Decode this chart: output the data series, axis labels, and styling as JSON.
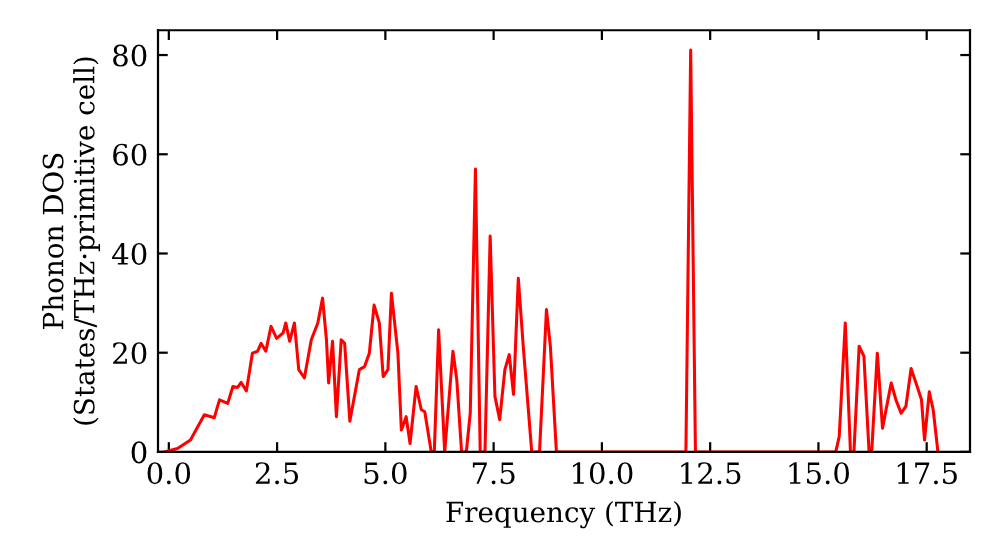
{
  "chart_data": {
    "type": "line",
    "xlabel": "Frequency (THz)",
    "ylabel": "Phonon DOS\n(States/THz·primitive cell)",
    "xlim": [
      -0.25,
      18.5
    ],
    "ylim": [
      0,
      85
    ],
    "xticks": [
      {
        "value": 0,
        "label": "0.0"
      },
      {
        "value": 2.5,
        "label": "2.5"
      },
      {
        "value": 5,
        "label": "5.0"
      },
      {
        "value": 7.5,
        "label": "7.5"
      },
      {
        "value": 10,
        "label": "10.0"
      },
      {
        "value": 12.5,
        "label": "12.5"
      },
      {
        "value": 15,
        "label": "15.0"
      },
      {
        "value": 17.5,
        "label": "17.5"
      }
    ],
    "yticks": [
      0,
      20,
      40,
      60,
      80
    ],
    "grid": false,
    "legend": false,
    "marker": "none",
    "line_style": "solid",
    "series": [
      {
        "color": "#ff0000",
        "x": [
          -0.1,
          0.2,
          0.5,
          0.82,
          1.05,
          1.17,
          1.36,
          1.48,
          1.59,
          1.67,
          1.79,
          1.93,
          2.05,
          2.13,
          2.24,
          2.36,
          2.49,
          2.64,
          2.7,
          2.79,
          2.9,
          3.0,
          3.13,
          3.29,
          3.44,
          3.55,
          3.64,
          3.69,
          3.78,
          3.87,
          3.98,
          4.06,
          4.18,
          4.4,
          4.52,
          4.63,
          4.74,
          4.86,
          4.95,
          5.06,
          5.14,
          5.29,
          5.37,
          5.48,
          5.57,
          5.71,
          5.83,
          5.91,
          6.06,
          6.13,
          6.23,
          6.37,
          6.56,
          6.65,
          6.76,
          6.87,
          6.96,
          7.08,
          7.19,
          7.3,
          7.42,
          7.53,
          7.64,
          7.76,
          7.86,
          7.96,
          8.07,
          8.19,
          8.38,
          8.56,
          8.72,
          8.81,
          8.95,
          11.94,
          12.05,
          12.16,
          15.4,
          15.48,
          15.62,
          15.74,
          15.82,
          15.94,
          16.05,
          16.17,
          16.23,
          16.36,
          16.48,
          16.68,
          16.79,
          16.91,
          17.02,
          17.14,
          17.28,
          17.38,
          17.45,
          17.56,
          17.65,
          17.76
        ],
        "values": [
          0,
          0.7,
          2.4,
          7.5,
          6.9,
          10.5,
          9.8,
          13.2,
          13,
          14,
          12.3,
          19.9,
          20.3,
          21.9,
          20.3,
          25.3,
          22.9,
          24,
          26,
          22.3,
          26,
          16.6,
          14.9,
          22.6,
          26,
          31,
          22.6,
          13.9,
          22.3,
          7.1,
          22.6,
          21.9,
          6.2,
          16.6,
          17.2,
          19.9,
          29.6,
          26,
          15.2,
          16.6,
          32,
          19.9,
          4.4,
          7.1,
          1.7,
          13.2,
          8.5,
          8.1,
          0,
          0,
          24.6,
          0,
          20.3,
          14.5,
          0,
          0,
          7.8,
          57,
          0,
          0,
          43.5,
          11.2,
          6.5,
          16.6,
          19.6,
          11.6,
          35,
          20.6,
          0,
          0,
          28.7,
          21.3,
          0,
          0,
          81,
          0,
          0,
          3.1,
          26,
          0,
          0,
          21.3,
          19.3,
          0,
          0,
          19.9,
          4.8,
          13.9,
          10.5,
          7.8,
          9.2,
          16.8,
          13.2,
          10.5,
          2.4,
          12.1,
          8.5,
          0
        ]
      }
    ]
  }
}
